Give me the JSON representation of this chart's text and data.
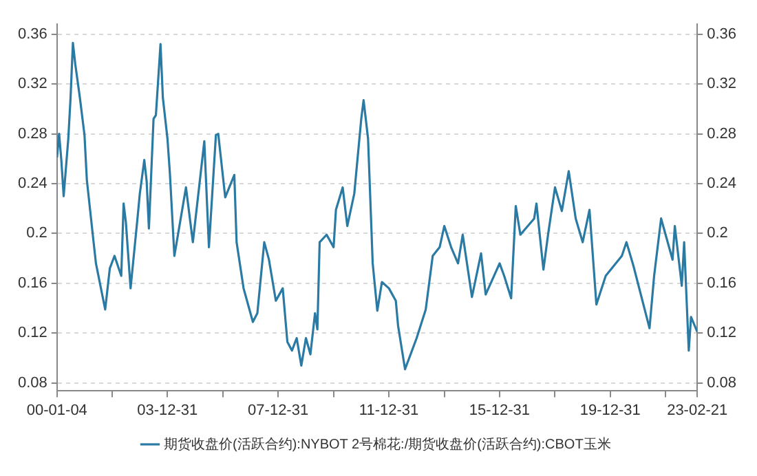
{
  "chart_data": {
    "type": "line",
    "legend": "bottom",
    "grid": "y",
    "marker": "none",
    "line_style": "solid",
    "xlim": [
      "2000-01-04",
      "2023-02-21"
    ],
    "xticks": [
      {
        "value": "2000-01-04",
        "label": "00-01-04"
      },
      {
        "value": "2001-12-31",
        "label": null
      },
      {
        "value": "2003-12-31",
        "label": "03-12-31"
      },
      {
        "value": "2005-12-31",
        "label": null
      },
      {
        "value": "2007-12-31",
        "label": "07-12-31"
      },
      {
        "value": "2009-12-31",
        "label": null
      },
      {
        "value": "2011-12-31",
        "label": "11-12-31"
      },
      {
        "value": "2013-12-31",
        "label": null
      },
      {
        "value": "2015-12-31",
        "label": "15-12-31"
      },
      {
        "value": "2017-12-31",
        "label": null
      },
      {
        "value": "2019-12-31",
        "label": "19-12-31"
      },
      {
        "value": "2021-12-31",
        "label": null
      },
      {
        "value": "2023-02-21",
        "label": "23-02-21"
      }
    ],
    "ylim": [
      0.074,
      0.368
    ],
    "yticks": [
      0.08,
      0.12,
      0.16,
      0.2,
      0.24,
      0.28,
      0.32,
      0.36
    ],
    "y2lim": [
      0.074,
      0.368
    ],
    "y2ticks": [
      0.08,
      0.12,
      0.16,
      0.2,
      0.24,
      0.28,
      0.32,
      0.36
    ],
    "series": [
      {
        "name": "期货收盘价(活跃合约):NYBOT 2号棉花:/期货收盘价(活跃合约):CBOT玉米",
        "color": "#2a7aa3",
        "x": [
          "2000-01-04",
          "2000-02",
          "2000-03",
          "2000-04",
          "2000-06",
          "2000-07",
          "2000-08",
          "2000-09",
          "2000-11",
          "2001-01",
          "2001-02",
          "2001-05",
          "2001-06",
          "2001-10",
          "2001-12",
          "2002-02",
          "2002-05",
          "2002-06",
          "2002-07",
          "2002-09",
          "2002-12",
          "2003-01",
          "2003-03",
          "2003-04",
          "2003-05",
          "2003-07",
          "2003-08",
          "2003-10",
          "2003-11",
          "2004-01",
          "2004-02",
          "2004-04",
          "2004-09",
          "2004-12",
          "2005-05",
          "2005-07",
          "2005-10",
          "2005-11",
          "2006-02",
          "2006-06",
          "2006-07",
          "2006-10",
          "2007-02",
          "2007-04",
          "2007-07",
          "2007-09",
          "2007-12",
          "2008-03",
          "2008-05",
          "2008-07",
          "2008-09",
          "2008-11",
          "2009-01",
          "2009-03",
          "2009-05",
          "2009-06",
          "2009-07",
          "2009-10",
          "2010-01",
          "2010-02",
          "2010-05",
          "2010-07",
          "2010-10",
          "2011-01",
          "2011-02",
          "2011-04",
          "2011-06",
          "2011-08",
          "2011-10",
          "2012-01",
          "2012-04",
          "2012-05",
          "2012-08",
          "2012-10",
          "2013-01",
          "2013-05",
          "2013-08",
          "2013-11",
          "2014-01",
          "2014-04",
          "2014-07",
          "2014-09",
          "2015-01",
          "2015-05",
          "2015-07",
          "2016-01",
          "2016-03",
          "2016-06",
          "2016-08",
          "2016-10",
          "2017-04",
          "2017-05",
          "2017-08",
          "2017-10",
          "2018-01",
          "2018-04",
          "2018-07",
          "2018-10",
          "2019-01",
          "2019-04",
          "2019-07",
          "2019-11",
          "2020-06",
          "2020-08",
          "2020-11",
          "2021-06",
          "2021-08",
          "2021-11",
          "2022-04",
          "2022-05",
          "2022-08",
          "2022-09",
          "2022-11",
          "2022-12",
          "2023-02-21"
        ],
        "values": [
          0.261,
          0.28,
          0.259,
          0.23,
          0.276,
          0.309,
          0.353,
          0.336,
          0.309,
          0.279,
          0.243,
          0.193,
          0.176,
          0.139,
          0.172,
          0.182,
          0.166,
          0.224,
          0.209,
          0.156,
          0.212,
          0.232,
          0.259,
          0.242,
          0.204,
          0.292,
          0.295,
          0.352,
          0.309,
          0.276,
          0.249,
          0.182,
          0.237,
          0.193,
          0.274,
          0.189,
          0.279,
          0.28,
          0.229,
          0.247,
          0.193,
          0.156,
          0.129,
          0.136,
          0.193,
          0.179,
          0.146,
          0.156,
          0.113,
          0.106,
          0.116,
          0.094,
          0.116,
          0.103,
          0.136,
          0.123,
          0.193,
          0.199,
          0.189,
          0.219,
          0.237,
          0.206,
          0.232,
          0.292,
          0.307,
          0.276,
          0.176,
          0.138,
          0.161,
          0.156,
          0.146,
          0.126,
          0.091,
          0.101,
          0.116,
          0.139,
          0.182,
          0.189,
          0.206,
          0.189,
          0.176,
          0.199,
          0.149,
          0.184,
          0.151,
          0.176,
          0.166,
          0.148,
          0.222,
          0.199,
          0.212,
          0.224,
          0.171,
          0.199,
          0.237,
          0.218,
          0.25,
          0.212,
          0.193,
          0.219,
          0.143,
          0.166,
          0.182,
          0.193,
          0.174,
          0.124,
          0.166,
          0.212,
          0.179,
          0.206,
          0.158,
          0.193,
          0.106,
          0.133,
          0.121
        ]
      }
    ]
  }
}
